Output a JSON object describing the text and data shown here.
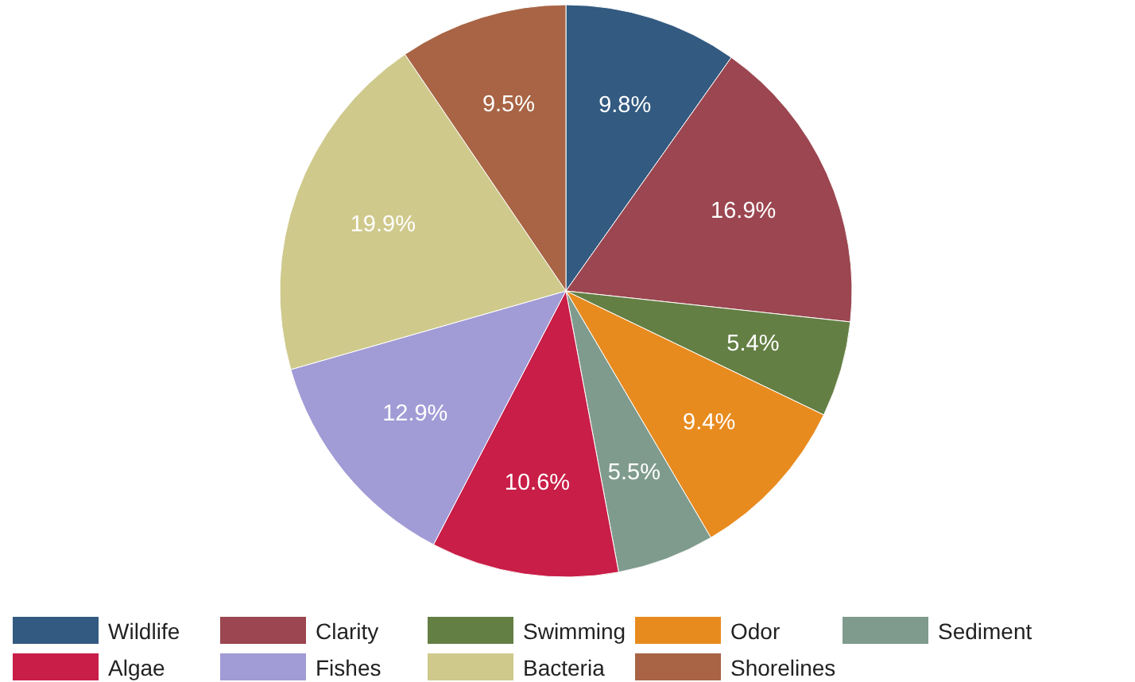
{
  "chart_data": {
    "type": "pie",
    "categories": [
      "Wildlife",
      "Clarity",
      "Swimming",
      "Odor",
      "Sediment",
      "Algae",
      "Fishes",
      "Bacteria",
      "Shorelines"
    ],
    "values": [
      9.8,
      16.9,
      5.4,
      9.4,
      5.5,
      10.6,
      12.9,
      19.9,
      9.5
    ],
    "value_labels": [
      "9.8%",
      "16.9%",
      "5.4%",
      "9.4%",
      "5.5%",
      "10.6%",
      "12.9%",
      "19.9%",
      "9.5%"
    ],
    "colors": [
      "#335a80",
      "#9b4650",
      "#647f44",
      "#e88b1f",
      "#7f9b8e",
      "#c81e47",
      "#a19bd6",
      "#cfc98c",
      "#a86444"
    ],
    "legend": "bottom"
  }
}
